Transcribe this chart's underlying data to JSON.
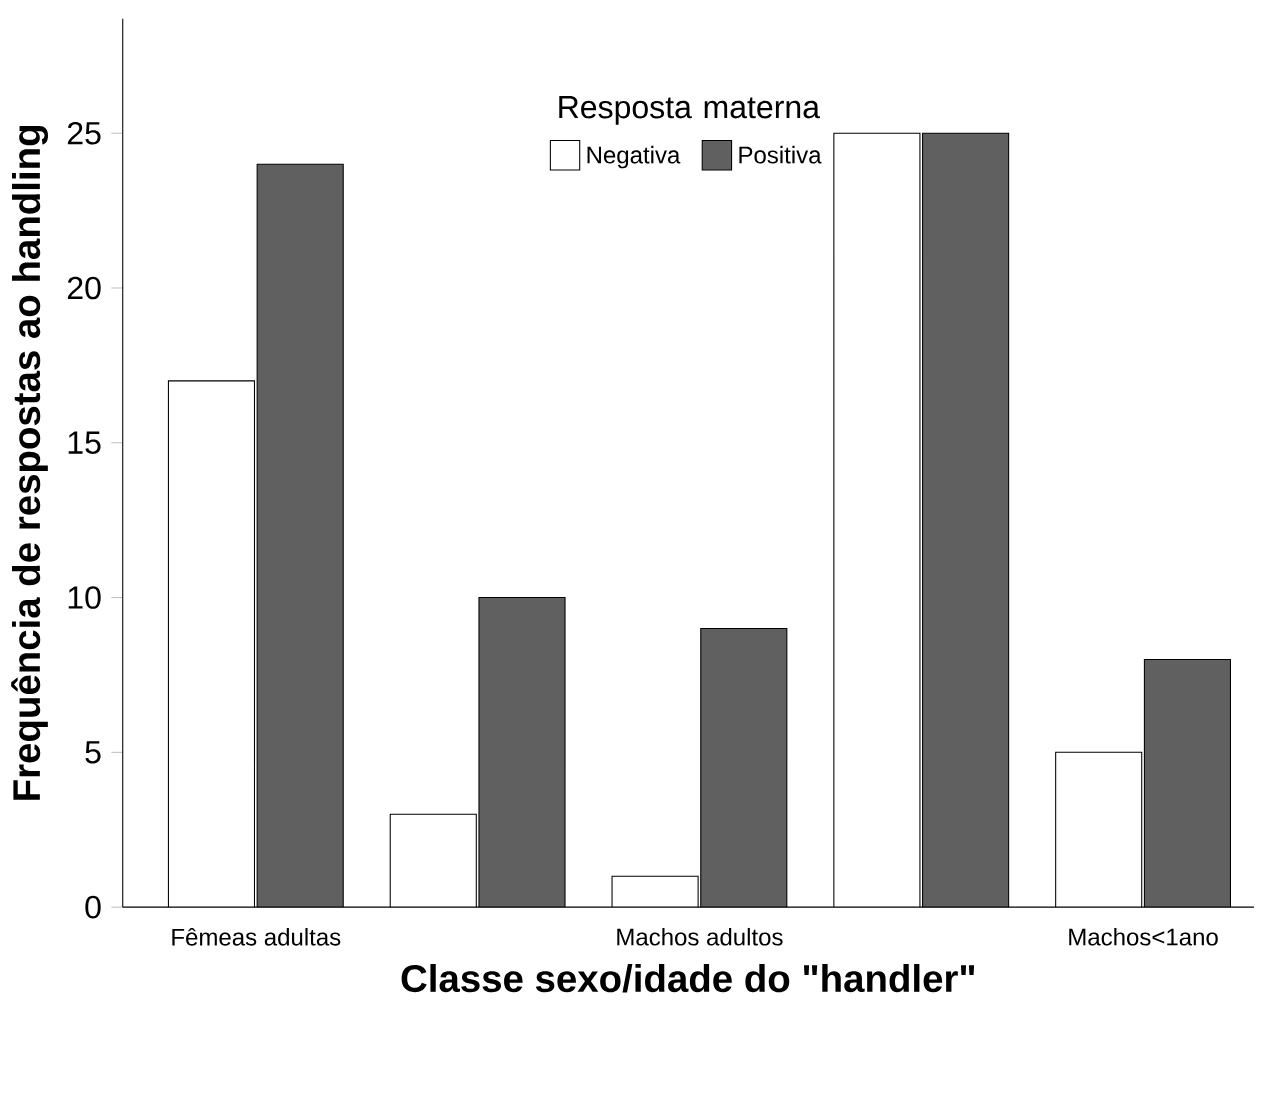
{
  "chart_data": {
    "type": "bar",
    "categories": [
      "Fêmeas adultas",
      null,
      "Machos adultos",
      null,
      "Machos<1ano"
    ],
    "series": [
      {
        "name": "Negativa",
        "color": "#ffffff",
        "values": [
          17,
          3,
          1,
          25,
          5
        ]
      },
      {
        "name": "Positiva",
        "color": "#606060",
        "values": [
          24,
          10,
          9,
          25,
          8
        ]
      }
    ],
    "legend_title": "Resposta materna",
    "xlabel": "Classe sexo/idade do \"handler\"",
    "ylabel": "Frequência de respostas ao handling",
    "ylim": [
      0,
      28.7
    ],
    "yticks": [
      0,
      5,
      10,
      15,
      20,
      25
    ],
    "legend": "top",
    "grid": false
  }
}
